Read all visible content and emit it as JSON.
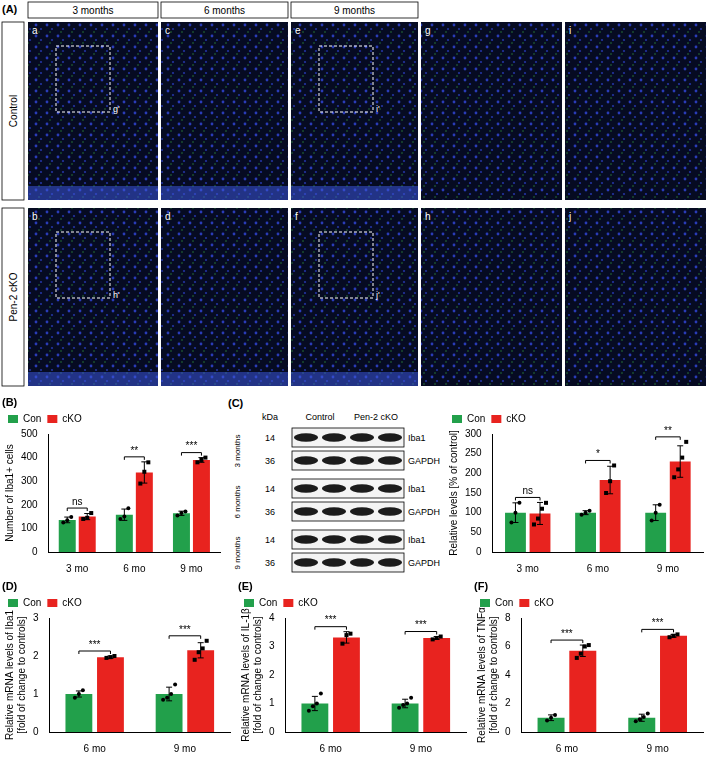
{
  "figure_panels": {
    "A": {
      "label": "(A)",
      "columns": [
        "3 months",
        "6 months",
        "9 months"
      ],
      "rows": [
        {
          "name": "Control",
          "images": [
            {
              "letter": "a",
              "inset": "g'"
            },
            {
              "letter": "c"
            },
            {
              "letter": "e",
              "inset": "i'"
            },
            {
              "letter": "g"
            },
            {
              "letter": "i"
            }
          ]
        },
        {
          "name": "Pen-2 cKO",
          "images": [
            {
              "letter": "b",
              "inset": "h'"
            },
            {
              "letter": "d"
            },
            {
              "letter": "f",
              "inset": "j'"
            },
            {
              "letter": "h"
            },
            {
              "letter": "j"
            }
          ]
        }
      ]
    },
    "C_blot": {
      "label": "(C)",
      "unit": "kDa",
      "groups": [
        "Control",
        "Pen-2 cKO"
      ],
      "blocks": [
        {
          "time": "3 months",
          "bands": [
            {
              "name": "Iba1",
              "kda": 14
            },
            {
              "name": "GAPDH",
              "kda": 36
            }
          ]
        },
        {
          "time": "6 months",
          "bands": [
            {
              "name": "Iba1",
              "kda": 14
            },
            {
              "name": "GAPDH",
              "kda": 36
            }
          ]
        },
        {
          "time": "9 months",
          "bands": [
            {
              "name": "Iba1",
              "kda": 14
            },
            {
              "name": "GAPDH",
              "kda": 36
            }
          ]
        }
      ]
    }
  },
  "chart_data": [
    {
      "panel": "(B)",
      "type": "bar",
      "ylabel": "Number of Iba1+ cells",
      "categories": [
        "3 mo",
        "6 mo",
        "9 mo"
      ],
      "series": [
        {
          "name": "Con",
          "color": "#22a04b",
          "marker": "circle",
          "values": [
            136,
            158,
            164
          ],
          "error": [
            12,
            24,
            9
          ],
          "points": [
            [
              125,
              135,
              148
            ],
            [
              140,
              150,
              185
            ],
            [
              155,
              165,
              172
            ]
          ]
        },
        {
          "name": "cKO",
          "color": "#e8231f",
          "marker": "square",
          "values": [
            150,
            337,
            390
          ],
          "error": [
            13,
            45,
            10
          ],
          "points": [
            [
              140,
              145,
              165
            ],
            [
              290,
              340,
              380
            ],
            [
              380,
              390,
              400
            ]
          ]
        }
      ],
      "significance": [
        "ns",
        "**",
        "***"
      ],
      "ylim": [
        0,
        500
      ],
      "yticks": [
        0,
        100,
        200,
        300,
        400,
        500
      ],
      "legend": "upper left",
      "grid": false
    },
    {
      "panel": "",
      "type": "bar",
      "ylabel": "Relative levels [% of control]",
      "categories": [
        "3 mo",
        "6 mo",
        "9 mo"
      ],
      "series": [
        {
          "name": "Con",
          "color": "#22a04b",
          "marker": "circle",
          "values": [
            100,
            100,
            100
          ],
          "error": [
            25,
            5,
            20
          ],
          "points": [
            [
              75,
              100,
              125
            ],
            [
              95,
              100,
              105
            ],
            [
              80,
              100,
              120
            ]
          ]
        },
        {
          "name": "cKO",
          "color": "#e8231f",
          "marker": "square",
          "values": [
            98,
            183,
            230
          ],
          "error": [
            28,
            35,
            40
          ],
          "points": [
            [
              70,
              85,
              110,
              125
            ],
            [
              150,
              180,
              220
            ],
            [
              190,
              210,
              240,
              280
            ]
          ]
        }
      ],
      "significance": [
        "ns",
        "*",
        "**"
      ],
      "ylim": [
        0,
        300
      ],
      "yticks": [
        0,
        50,
        100,
        150,
        200,
        250,
        300
      ],
      "legend": "upper left",
      "grid": false
    },
    {
      "panel": "(D)",
      "type": "bar",
      "ylabel": [
        "Relative mRNA levels of Iba1",
        "[fold of change to controls]"
      ],
      "categories": [
        "6 mo",
        "9 mo"
      ],
      "series": [
        {
          "name": "Con",
          "color": "#22a04b",
          "marker": "circle",
          "values": [
            1.0,
            1.0
          ],
          "error": [
            0.08,
            0.18
          ],
          "points": [
            [
              0.9,
              1.0,
              1.1
            ],
            [
              0.85,
              0.9,
              1.0,
              1.25
            ]
          ]
        },
        {
          "name": "cKO",
          "color": "#e8231f",
          "marker": "square",
          "values": [
            1.97,
            2.15
          ],
          "error": [
            0.03,
            0.2
          ],
          "points": [
            [
              1.95,
              1.97,
              2.0
            ],
            [
              1.9,
              2.1,
              2.2,
              2.4
            ]
          ]
        }
      ],
      "significance": [
        "***",
        "***"
      ],
      "ylim": [
        0,
        3
      ],
      "yticks": [
        0,
        1,
        2,
        3
      ],
      "legend": "upper left",
      "grid": false
    },
    {
      "panel": "(E)",
      "type": "bar",
      "ylabel": [
        "Relative mRNA levels of IL-1β",
        "[fold of change to controls]"
      ],
      "categories": [
        "6 mo",
        "9 mo"
      ],
      "series": [
        {
          "name": "Con",
          "color": "#22a04b",
          "marker": "circle",
          "values": [
            1.0,
            1.0
          ],
          "error": [
            0.25,
            0.15
          ],
          "points": [
            [
              0.75,
              0.9,
              1.0,
              1.35
            ],
            [
              0.85,
              0.95,
              1.0,
              1.2
            ]
          ]
        },
        {
          "name": "cKO",
          "color": "#e8231f",
          "marker": "square",
          "values": [
            3.32,
            3.3
          ],
          "error": [
            0.2,
            0.05
          ],
          "points": [
            [
              3.1,
              3.4,
              3.45
            ],
            [
              3.25,
              3.3,
              3.35
            ]
          ]
        }
      ],
      "significance": [
        "***",
        "***"
      ],
      "ylim": [
        0,
        4
      ],
      "yticks": [
        0,
        1,
        2,
        3,
        4
      ],
      "legend": "upper left",
      "grid": false
    },
    {
      "panel": "(F)",
      "type": "bar",
      "ylabel": [
        "Relative mRNA levels of TNFα",
        "[fold of change to controls]"
      ],
      "categories": [
        "6 mo",
        "9 mo"
      ],
      "series": [
        {
          "name": "Con",
          "color": "#22a04b",
          "marker": "circle",
          "values": [
            1.0,
            1.0
          ],
          "error": [
            0.2,
            0.25
          ],
          "points": [
            [
              0.8,
              1.0,
              1.2
            ],
            [
              0.75,
              0.9,
              1.05,
              1.3
            ]
          ]
        },
        {
          "name": "cKO",
          "color": "#e8231f",
          "marker": "square",
          "values": [
            5.7,
            6.75
          ],
          "error": [
            0.4,
            0.1
          ],
          "points": [
            [
              5.2,
              5.5,
              6.0,
              6.1
            ],
            [
              6.65,
              6.75,
              6.85
            ]
          ]
        }
      ],
      "significance": [
        "***",
        "***"
      ],
      "ylim": [
        0,
        8
      ],
      "yticks": [
        0,
        2,
        4,
        6,
        8
      ],
      "legend": "upper left",
      "grid": false
    }
  ]
}
